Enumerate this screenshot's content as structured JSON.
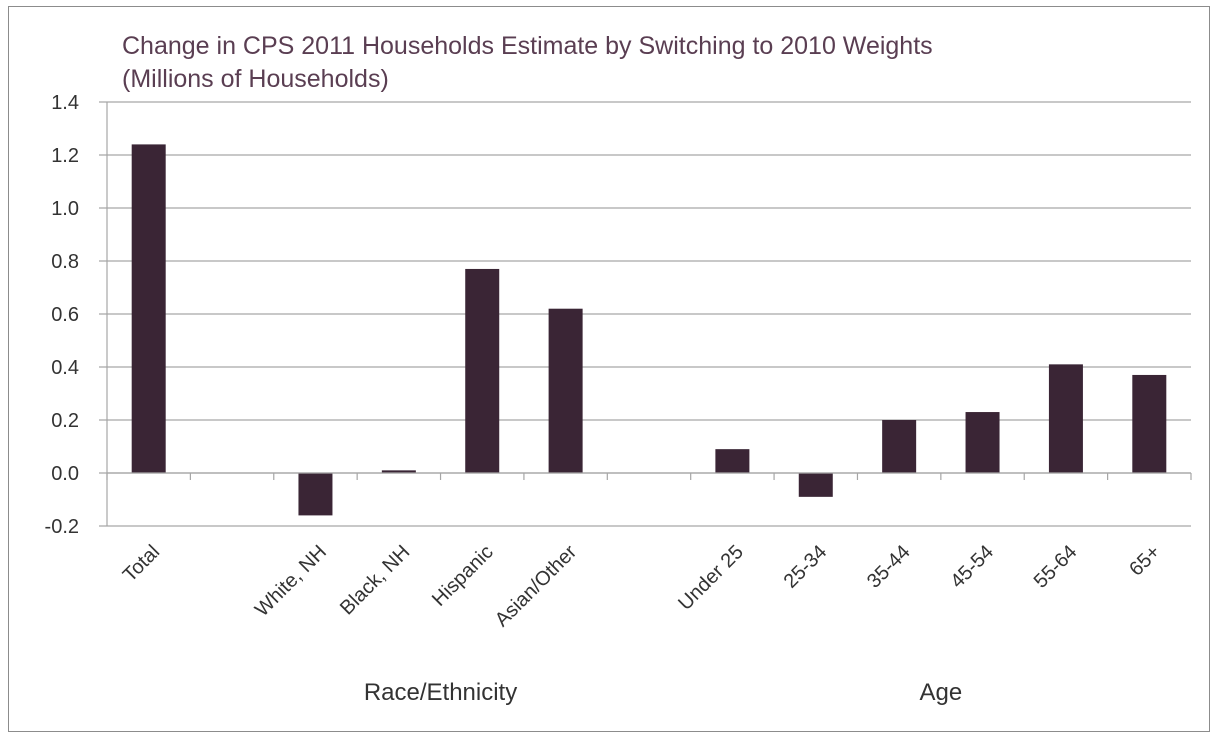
{
  "chart_data": {
    "type": "bar",
    "title": "Change in CPS 2011 Households Estimate by Switching to 2010 Weights",
    "subtitle": "(Millions of Households)",
    "categories": [
      "Total",
      "",
      "White, NH",
      "Black, NH",
      "Hispanic",
      "Asian/Other",
      "",
      "Under 25",
      "25-34",
      "35-44",
      "45-54",
      "55-64",
      "65+"
    ],
    "values": [
      1.24,
      null,
      -0.16,
      0.01,
      0.77,
      0.62,
      null,
      0.09,
      -0.09,
      0.2,
      0.23,
      0.41,
      0.37
    ],
    "groups": [
      {
        "label": "Race/Ethnicity",
        "categories": [
          "White, NH",
          "Black, NH",
          "Hispanic",
          "Asian/Other"
        ]
      },
      {
        "label": "Age",
        "categories": [
          "Under 25",
          "25-34",
          "35-44",
          "45-54",
          "55-64",
          "65+"
        ]
      }
    ],
    "ylim": [
      -0.2,
      1.4
    ],
    "yticks": [
      "1.4",
      "1.2",
      "1.0",
      "0.8",
      "0.6",
      "0.4",
      "0.2",
      "0.0",
      "-0.2"
    ],
    "ytick_values": [
      1.4,
      1.2,
      1.0,
      0.8,
      0.6,
      0.4,
      0.2,
      0.0,
      -0.2
    ],
    "grid": true,
    "legend": "none",
    "colors": {
      "bar": "#3a2535",
      "title": "#5a3e52",
      "grid": "#a6a6a6"
    }
  }
}
